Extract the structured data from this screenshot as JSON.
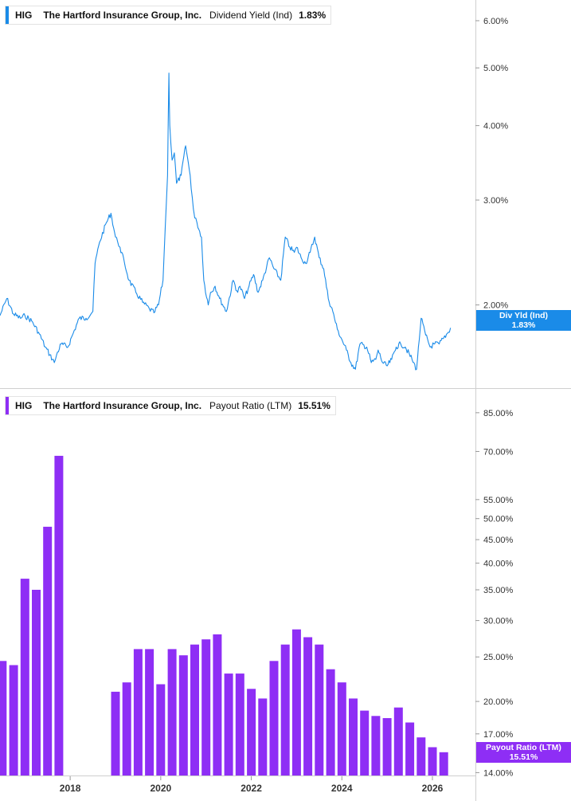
{
  "panels": {
    "top": {
      "ticker": "HIG",
      "company": "The Hartford Insurance Group, Inc.",
      "metric": "Dividend Yield (Ind)",
      "value": "1.83%",
      "badge_label": "Div Yld (Ind)",
      "badge_value": "1.83%",
      "color": "#1a8be8"
    },
    "bottom": {
      "ticker": "HIG",
      "company": "The Hartford Insurance Group, Inc.",
      "metric": "Payout Ratio (LTM)",
      "value": "15.51%",
      "badge_label": "Payout Ratio (LTM)",
      "badge_value": "15.51%",
      "color": "#8e2ef5"
    }
  },
  "chart_data": [
    {
      "type": "line",
      "name": "Dividend Yield (Ind)",
      "y_scale": "log",
      "y_ticks": [
        "6.00%",
        "5.00%",
        "4.00%",
        "3.00%",
        "2.00%"
      ],
      "y_tick_values": [
        6,
        5,
        4,
        3,
        2
      ],
      "ylim": [
        1.45,
        6.5
      ],
      "x_ticks": [
        "2018",
        "2020",
        "2022",
        "2024",
        "2026"
      ],
      "x_tick_values": [
        2018,
        2020,
        2022,
        2024,
        2026
      ],
      "xlim": [
        2016.45,
        2026.95
      ],
      "x": [
        2016.45,
        2016.6,
        2016.75,
        2016.9,
        2017.0,
        2017.15,
        2017.3,
        2017.45,
        2017.55,
        2017.65,
        2017.7,
        2017.8,
        2017.95,
        2018.05,
        2018.2,
        2018.35,
        2018.5,
        2018.55,
        2018.65,
        2018.8,
        2018.9,
        2019.0,
        2019.05,
        2019.1,
        2019.2,
        2019.3,
        2019.45,
        2019.6,
        2019.75,
        2019.85,
        2019.95,
        2020.05,
        2020.1,
        2020.15,
        2020.18,
        2020.2,
        2020.25,
        2020.3,
        2020.35,
        2020.45,
        2020.55,
        2020.65,
        2020.72,
        2020.75,
        2020.8,
        2020.9,
        2020.95,
        2021.05,
        2021.1,
        2021.2,
        2021.3,
        2021.45,
        2021.6,
        2021.7,
        2021.75,
        2021.85,
        2021.95,
        2022.05,
        2022.15,
        2022.25,
        2022.4,
        2022.5,
        2022.65,
        2022.75,
        2022.85,
        2022.95,
        2023.0,
        2023.1,
        2023.2,
        2023.3,
        2023.4,
        2023.5,
        2023.6,
        2023.7,
        2023.8,
        2023.9,
        2024.0,
        2024.1,
        2024.2,
        2024.3,
        2024.4,
        2024.55,
        2024.65,
        2024.75,
        2024.8,
        2024.9,
        2025.0,
        2025.1,
        2025.2,
        2025.3,
        2025.4,
        2025.55,
        2025.65,
        2025.75,
        2025.85,
        2025.95,
        2026.05,
        2026.15,
        2026.25,
        2026.35,
        2026.4
      ],
      "values": [
        1.92,
        2.05,
        1.93,
        1.9,
        1.92,
        1.88,
        1.8,
        1.7,
        1.65,
        1.6,
        1.65,
        1.72,
        1.7,
        1.78,
        1.9,
        1.9,
        1.95,
        2.35,
        2.55,
        2.75,
        2.85,
        2.6,
        2.55,
        2.5,
        2.35,
        2.2,
        2.1,
        2.02,
        1.97,
        1.94,
        2.0,
        2.2,
        2.7,
        3.3,
        4.9,
        4.0,
        3.5,
        3.6,
        3.2,
        3.3,
        3.7,
        3.3,
        2.9,
        2.8,
        2.75,
        2.6,
        2.2,
        2.0,
        2.1,
        2.15,
        2.05,
        1.95,
        2.2,
        2.1,
        2.15,
        2.05,
        2.15,
        2.25,
        2.1,
        2.2,
        2.4,
        2.3,
        2.2,
        2.6,
        2.5,
        2.45,
        2.5,
        2.4,
        2.35,
        2.45,
        2.6,
        2.4,
        2.3,
        2.05,
        1.95,
        1.82,
        1.75,
        1.68,
        1.6,
        1.56,
        1.72,
        1.7,
        1.6,
        1.62,
        1.68,
        1.6,
        1.58,
        1.62,
        1.7,
        1.72,
        1.7,
        1.62,
        1.56,
        1.9,
        1.78,
        1.7,
        1.72,
        1.72,
        1.76,
        1.8,
        1.83
      ]
    },
    {
      "type": "bar",
      "name": "Payout Ratio (LTM)",
      "y_scale": "log",
      "y_ticks": [
        "85.00%",
        "70.00%",
        "55.00%",
        "50.00%",
        "45.00%",
        "40.00%",
        "35.00%",
        "30.00%",
        "25.00%",
        "20.00%",
        "17.00%",
        "14.00%"
      ],
      "y_tick_values": [
        85,
        70,
        55,
        50,
        45,
        40,
        35,
        30,
        25,
        20,
        17,
        14
      ],
      "ylim": [
        13.8,
        95
      ],
      "x_ticks": [
        "2018",
        "2020",
        "2022",
        "2024",
        "2026"
      ],
      "x_tick_values": [
        2018,
        2020,
        2022,
        2024,
        2026
      ],
      "xlim": [
        2016.45,
        2026.95
      ],
      "x": [
        2016.5,
        2016.75,
        2017.0,
        2017.25,
        2017.5,
        2017.75,
        2019.0,
        2019.25,
        2019.5,
        2019.75,
        2020.0,
        2020.25,
        2020.5,
        2020.75,
        2021.0,
        2021.25,
        2021.5,
        2021.75,
        2022.0,
        2022.25,
        2022.5,
        2022.75,
        2023.0,
        2023.25,
        2023.5,
        2023.75,
        2024.0,
        2024.25,
        2024.5,
        2024.75,
        2025.0,
        2025.25,
        2025.5,
        2025.75,
        2026.0,
        2026.25
      ],
      "values": [
        24.5,
        24.0,
        37.0,
        35.0,
        48.0,
        68.5,
        21.0,
        22.0,
        26.0,
        26.0,
        21.8,
        26.0,
        25.2,
        26.6,
        27.3,
        28.0,
        23.0,
        23.0,
        21.3,
        20.3,
        24.5,
        26.6,
        28.7,
        27.6,
        26.6,
        23.5,
        22.0,
        20.3,
        19.1,
        18.6,
        18.4,
        19.4,
        18.0,
        16.7,
        15.9,
        15.51
      ]
    }
  ]
}
